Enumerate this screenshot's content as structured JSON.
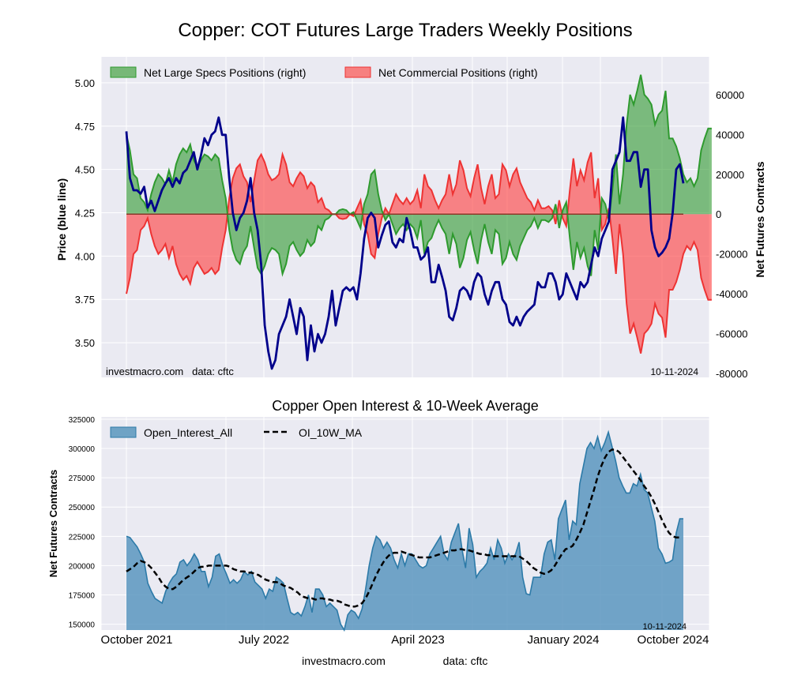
{
  "title": "Copper: COT Futures Large Traders Weekly Positions",
  "footer": {
    "site": "investmacro.com",
    "source": "data: cftc"
  },
  "chart_data": [
    {
      "type": "line+area",
      "title": "Copper: COT Futures Large Traders Weekly Positions",
      "ylabel_left": "Price (blue line)",
      "ylabel_right": "Net Futures Contracts",
      "ylim_left": [
        3.3,
        5.15
      ],
      "ylim_right": [
        -82000,
        79000
      ],
      "yticks_left": [
        "3.50",
        "3.75",
        "4.00",
        "4.25",
        "4.50",
        "4.75",
        "5.00"
      ],
      "yticks_right": [
        "-80000",
        "-60000",
        "-40000",
        "-20000",
        "0",
        "20000",
        "40000",
        "60000"
      ],
      "legend": [
        "Net Large Specs Positions (right)",
        "Net Commercial Positions (right)"
      ],
      "watermark": "investmacro.com   data: cftc",
      "date_label": "10-11-2024",
      "x_range_weeks": [
        0,
        156
      ],
      "price": [
        4.72,
        4.45,
        4.38,
        4.38,
        4.36,
        4.4,
        4.28,
        4.32,
        4.26,
        4.32,
        4.38,
        4.42,
        4.45,
        4.4,
        4.45,
        4.42,
        4.48,
        4.5,
        4.55,
        4.6,
        4.5,
        4.58,
        4.68,
        4.64,
        4.7,
        4.72,
        4.8,
        4.7,
        4.7,
        4.45,
        4.25,
        4.15,
        4.22,
        4.25,
        4.32,
        4.45,
        4.25,
        4.15,
        3.95,
        3.6,
        3.45,
        3.35,
        3.4,
        3.55,
        3.6,
        3.65,
        3.75,
        3.65,
        3.55,
        3.7,
        3.65,
        3.4,
        3.6,
        3.45,
        3.55,
        3.5,
        3.55,
        3.65,
        3.8,
        3.6,
        3.7,
        3.8,
        3.82,
        3.8,
        3.82,
        3.75,
        3.9,
        4.1,
        4.22,
        4.25,
        4.22,
        4.05,
        4.12,
        4.18,
        4.2,
        4.08,
        4.05,
        4.1,
        4.08,
        4.22,
        4.15,
        4.05,
        4.05,
        3.98,
        4.0,
        4.05,
        3.85,
        3.85,
        3.95,
        3.88,
        3.8,
        3.65,
        3.63,
        3.7,
        3.8,
        3.82,
        3.8,
        3.75,
        3.85,
        3.9,
        3.88,
        3.78,
        3.72,
        3.8,
        3.85,
        3.85,
        3.75,
        3.72,
        3.62,
        3.6,
        3.65,
        3.6,
        3.65,
        3.68,
        3.7,
        3.72,
        3.85,
        3.82,
        3.82,
        3.9,
        3.9,
        3.85,
        3.75,
        3.78,
        3.9,
        3.85,
        3.8,
        3.75,
        3.85,
        3.82,
        3.85,
        3.95,
        4.05,
        4.0,
        4.1,
        4.15,
        4.2,
        4.5,
        4.55,
        4.6,
        4.8,
        4.55,
        4.55,
        4.6,
        4.6,
        4.4,
        4.5,
        4.5,
        4.15,
        4.05,
        4.0,
        4.02,
        4.05,
        4.1,
        4.25,
        4.5,
        4.53,
        4.42
      ],
      "specs": [
        40000,
        32000,
        20000,
        18000,
        8000,
        6000,
        2000,
        10000,
        16000,
        20000,
        18000,
        15000,
        22000,
        16000,
        25000,
        30000,
        33000,
        31000,
        35000,
        27000,
        24000,
        27000,
        30000,
        29000,
        27000,
        30000,
        28000,
        17000,
        8000,
        -8000,
        -18000,
        -23000,
        -25000,
        -19000,
        -16000,
        -6000,
        -17000,
        -27000,
        -30000,
        -26000,
        -20000,
        -17000,
        -18000,
        -20000,
        -30000,
        -25000,
        -16000,
        -14000,
        -18000,
        -21000,
        -19000,
        -13000,
        -16000,
        -14000,
        -6000,
        -8000,
        -3000,
        -2000,
        0,
        0,
        2000,
        2500,
        2000,
        0,
        1000,
        -3000,
        -7000,
        5000,
        10000,
        20000,
        22000,
        10000,
        2000,
        -3000,
        0,
        -5000,
        -10000,
        -7000,
        -5000,
        -8000,
        -5000,
        -7000,
        -12000,
        -3000,
        -20000,
        -14000,
        -12000,
        -7000,
        -3000,
        -7000,
        -10000,
        -20000,
        -10000,
        -15000,
        -27000,
        -22000,
        -13000,
        -9000,
        -18000,
        -25000,
        -13000,
        -5000,
        -14000,
        -20000,
        -8000,
        -10000,
        -25000,
        -22000,
        -14000,
        -20000,
        -23000,
        -16000,
        -12000,
        -8000,
        -6000,
        -2000,
        -7000,
        -3000,
        -3000,
        -4000,
        -2000,
        5000,
        -7000,
        2000,
        6000,
        -12000,
        -28000,
        -14000,
        -22000,
        -17000,
        -26000,
        -31000,
        -8000,
        -18000,
        8000,
        5000,
        -3000,
        12000,
        30000,
        5000,
        20000,
        45000,
        60000,
        55000,
        62000,
        70000,
        60000,
        58000,
        55000,
        45000,
        50000,
        52000,
        62000,
        38000,
        38000,
        34000,
        28000,
        20000,
        16000,
        18000,
        14000,
        18000,
        32000,
        38000,
        43000,
        43000
      ]
    },
    {
      "type": "area+line",
      "title": "Copper Open Interest & 10-Week Average",
      "ylabel": "Net Futures Contracts",
      "ylim": [
        145000,
        327000
      ],
      "yticks": [
        "150000",
        "175000",
        "200000",
        "225000",
        "250000",
        "275000",
        "300000",
        "325000"
      ],
      "xticks": [
        "October 2021",
        "July 2022",
        "April 2023",
        "January 2024",
        "October 2024"
      ],
      "legend": [
        "Open_Interest_All",
        "OI_10W_MA"
      ],
      "watermark": "10-11-2024",
      "oi": [
        225000,
        224000,
        220000,
        216000,
        210000,
        203000,
        185000,
        178000,
        172000,
        170000,
        168000,
        178000,
        185000,
        190000,
        193000,
        203000,
        205000,
        200000,
        204000,
        210000,
        205000,
        195000,
        195000,
        182000,
        190000,
        208000,
        210000,
        200000,
        193000,
        185000,
        188000,
        185000,
        188000,
        195000,
        192000,
        195000,
        186000,
        183000,
        180000,
        172000,
        180000,
        178000,
        190000,
        188000,
        185000,
        172000,
        160000,
        158000,
        160000,
        157000,
        165000,
        175000,
        160000,
        180000,
        180000,
        175000,
        165000,
        168000,
        165000,
        162000,
        150000,
        145000,
        158000,
        162000,
        160000,
        155000,
        163000,
        180000,
        200000,
        215000,
        225000,
        222000,
        215000,
        220000,
        215000,
        205000,
        198000,
        210000,
        200000,
        210000,
        210000,
        205000,
        200000,
        198000,
        200000,
        210000,
        215000,
        220000,
        225000,
        210000,
        205000,
        220000,
        228000,
        236000,
        214000,
        198000,
        232000,
        218000,
        190000,
        195000,
        198000,
        202000,
        215000,
        205000,
        222000,
        215000,
        202000,
        210000,
        205000,
        210000,
        220000,
        190000,
        176000,
        175000,
        190000,
        190000,
        190000,
        210000,
        220000,
        222000,
        205000,
        240000,
        248000,
        256000,
        222000,
        238000,
        235000,
        270000,
        285000,
        300000,
        305000,
        300000,
        310000,
        298000,
        305000,
        314000,
        302000,
        290000,
        275000,
        268000,
        262000,
        262000,
        270000,
        268000,
        278000,
        265000,
        262000,
        250000,
        238000,
        215000,
        210000,
        202000,
        203000,
        205000,
        228000,
        240000,
        240000
      ],
      "ma10": [
        195000,
        197000,
        199000,
        202000,
        204000,
        203000,
        201000,
        198000,
        194000,
        190000,
        185000,
        182000,
        180000,
        180000,
        182000,
        185000,
        188000,
        190000,
        192000,
        195000,
        198000,
        199000,
        199000,
        200000,
        200000,
        200000,
        200000,
        200000,
        200000,
        199000,
        197000,
        196000,
        195000,
        195000,
        194000,
        194000,
        193000,
        192000,
        190000,
        188000,
        187000,
        186000,
        186000,
        185000,
        183000,
        182000,
        181000,
        179000,
        177000,
        174000,
        173000,
        172000,
        172000,
        171000,
        172000,
        172000,
        171000,
        171000,
        170000,
        170000,
        169000,
        167000,
        166000,
        165000,
        165000,
        166000,
        168000,
        172000,
        178000,
        185000,
        192000,
        198000,
        203000,
        207000,
        210000,
        211000,
        211000,
        212000,
        211000,
        210000,
        209000,
        208000,
        207000,
        207000,
        207000,
        207000,
        208000,
        209000,
        210000,
        211000,
        212000,
        213000,
        213000,
        214000,
        214000,
        213000,
        213000,
        212000,
        211000,
        210000,
        210000,
        209000,
        209000,
        208000,
        208000,
        208000,
        208000,
        208000,
        208000,
        208000,
        208000,
        206000,
        204000,
        201000,
        198000,
        196000,
        194000,
        193000,
        194000,
        196000,
        200000,
        205000,
        210000,
        214000,
        215000,
        217000,
        222000,
        228000,
        235000,
        245000,
        255000,
        265000,
        276000,
        285000,
        292000,
        297000,
        299000,
        299000,
        297000,
        293000,
        289000,
        285000,
        281000,
        277000,
        273000,
        268000,
        264000,
        259000,
        253000,
        246000,
        239000,
        233000,
        228000,
        225000,
        224000,
        224000
      ]
    }
  ]
}
